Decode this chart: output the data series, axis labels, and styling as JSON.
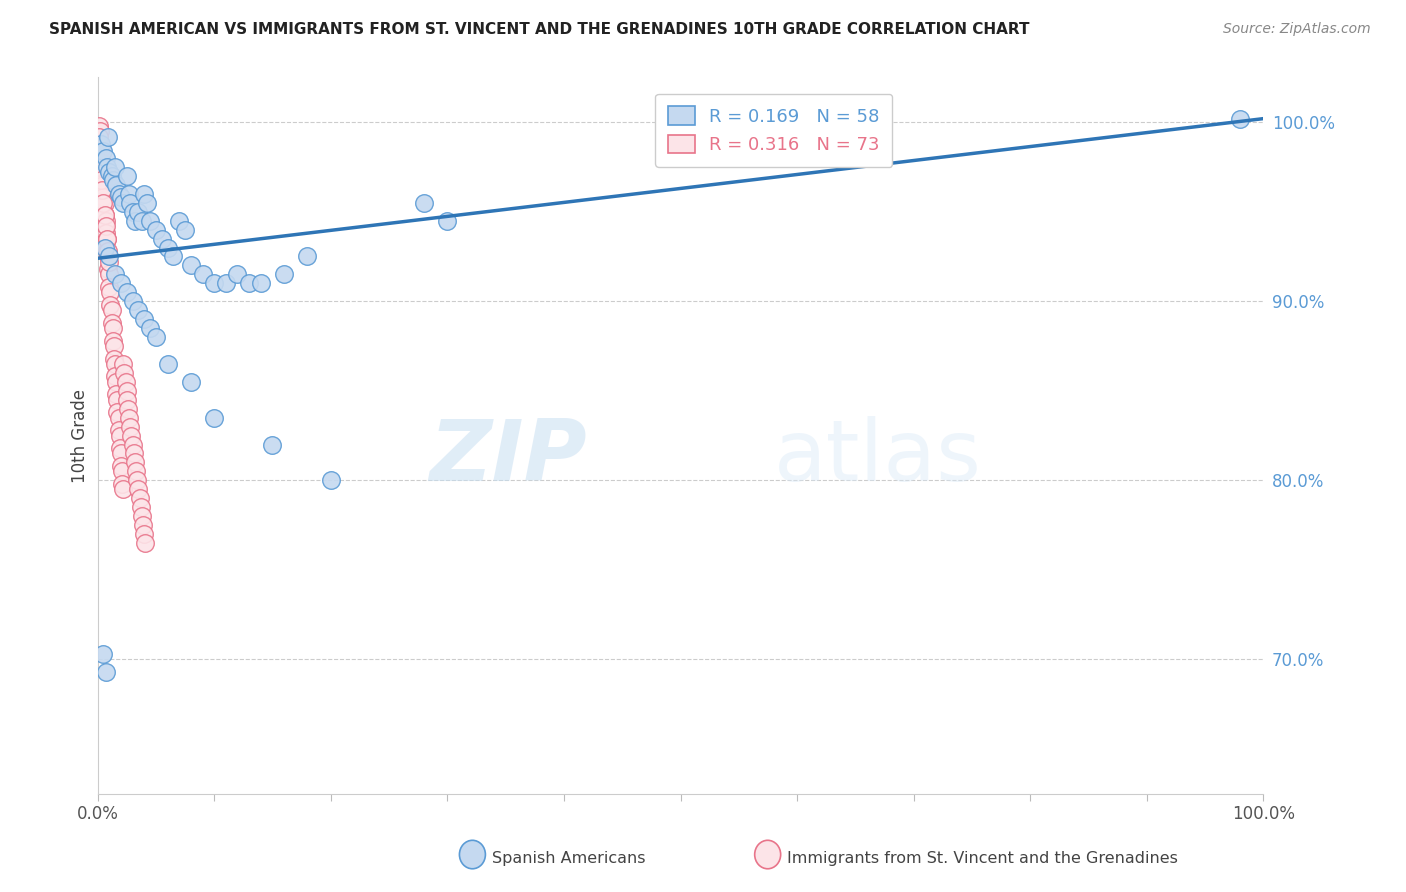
{
  "title": "SPANISH AMERICAN VS IMMIGRANTS FROM ST. VINCENT AND THE GRENADINES 10TH GRADE CORRELATION CHART",
  "source": "Source: ZipAtlas.com",
  "ylabel": "10th Grade",
  "xlim": [
    0.0,
    1.0
  ],
  "ylim": [
    0.625,
    1.025
  ],
  "y_ticks_right": [
    0.7,
    0.8,
    0.9,
    1.0
  ],
  "y_tick_labels_right": [
    "70.0%",
    "80.0%",
    "90.0%",
    "100.0%"
  ],
  "blue_color": "#5b9bd5",
  "blue_fill": "#c5d9f0",
  "pink_color": "#e8748a",
  "pink_fill": "#fce4e8",
  "trend_color": "#2e75b6",
  "R_blue": 0.169,
  "N_blue": 58,
  "R_pink": 0.316,
  "N_pink": 73,
  "legend_label_blue": "Spanish Americans",
  "legend_label_pink": "Immigrants from St. Vincent and the Grenadines",
  "watermark_zip": "ZIP",
  "watermark_atlas": "atlas",
  "grid_color": "#cccccc",
  "trend_x_start": 0.0,
  "trend_y_start": 0.924,
  "trend_x_end": 1.0,
  "trend_y_end": 1.002,
  "blue_scatter_x": [
    0.003,
    0.005,
    0.007,
    0.008,
    0.009,
    0.01,
    0.012,
    0.013,
    0.015,
    0.016,
    0.018,
    0.02,
    0.022,
    0.025,
    0.027,
    0.028,
    0.03,
    0.032,
    0.035,
    0.038,
    0.04,
    0.042,
    0.045,
    0.05,
    0.055,
    0.06,
    0.065,
    0.07,
    0.075,
    0.08,
    0.09,
    0.1,
    0.11,
    0.12,
    0.13,
    0.14,
    0.16,
    0.18,
    0.28,
    0.3,
    0.006,
    0.01,
    0.015,
    0.02,
    0.025,
    0.03,
    0.035,
    0.04,
    0.045,
    0.05,
    0.06,
    0.08,
    0.1,
    0.15,
    0.2,
    0.98,
    0.005,
    0.007
  ],
  "blue_scatter_y": [
    0.988,
    0.984,
    0.98,
    0.975,
    0.992,
    0.972,
    0.97,
    0.968,
    0.975,
    0.965,
    0.96,
    0.958,
    0.955,
    0.97,
    0.96,
    0.955,
    0.95,
    0.945,
    0.95,
    0.945,
    0.96,
    0.955,
    0.945,
    0.94,
    0.935,
    0.93,
    0.925,
    0.945,
    0.94,
    0.92,
    0.915,
    0.91,
    0.91,
    0.915,
    0.91,
    0.91,
    0.915,
    0.925,
    0.955,
    0.945,
    0.93,
    0.925,
    0.915,
    0.91,
    0.905,
    0.9,
    0.895,
    0.89,
    0.885,
    0.88,
    0.865,
    0.855,
    0.835,
    0.82,
    0.8,
    1.002,
    0.703,
    0.693
  ],
  "pink_scatter_x": [
    0.001,
    0.002,
    0.002,
    0.003,
    0.003,
    0.004,
    0.004,
    0.005,
    0.005,
    0.006,
    0.006,
    0.007,
    0.007,
    0.008,
    0.008,
    0.009,
    0.009,
    0.01,
    0.01,
    0.011,
    0.011,
    0.012,
    0.012,
    0.013,
    0.013,
    0.014,
    0.014,
    0.015,
    0.015,
    0.016,
    0.016,
    0.017,
    0.017,
    0.018,
    0.018,
    0.019,
    0.019,
    0.02,
    0.02,
    0.021,
    0.021,
    0.022,
    0.022,
    0.023,
    0.024,
    0.025,
    0.025,
    0.026,
    0.027,
    0.028,
    0.029,
    0.03,
    0.031,
    0.032,
    0.033,
    0.034,
    0.035,
    0.036,
    0.037,
    0.038,
    0.039,
    0.04,
    0.041,
    0.001,
    0.002,
    0.003,
    0.004,
    0.005,
    0.006,
    0.007,
    0.008,
    0.009,
    0.01
  ],
  "pink_scatter_y": [
    0.998,
    0.995,
    0.988,
    0.985,
    0.978,
    0.975,
    0.968,
    0.965,
    0.958,
    0.955,
    0.948,
    0.945,
    0.938,
    0.935,
    0.928,
    0.925,
    0.918,
    0.915,
    0.908,
    0.905,
    0.898,
    0.895,
    0.888,
    0.885,
    0.878,
    0.875,
    0.868,
    0.865,
    0.858,
    0.855,
    0.848,
    0.845,
    0.838,
    0.835,
    0.828,
    0.825,
    0.818,
    0.815,
    0.808,
    0.805,
    0.798,
    0.795,
    0.865,
    0.86,
    0.855,
    0.85,
    0.845,
    0.84,
    0.835,
    0.83,
    0.825,
    0.82,
    0.815,
    0.81,
    0.805,
    0.8,
    0.795,
    0.79,
    0.785,
    0.78,
    0.775,
    0.77,
    0.765,
    0.992,
    0.975,
    0.968,
    0.962,
    0.955,
    0.948,
    0.942,
    0.935,
    0.928,
    0.922
  ]
}
